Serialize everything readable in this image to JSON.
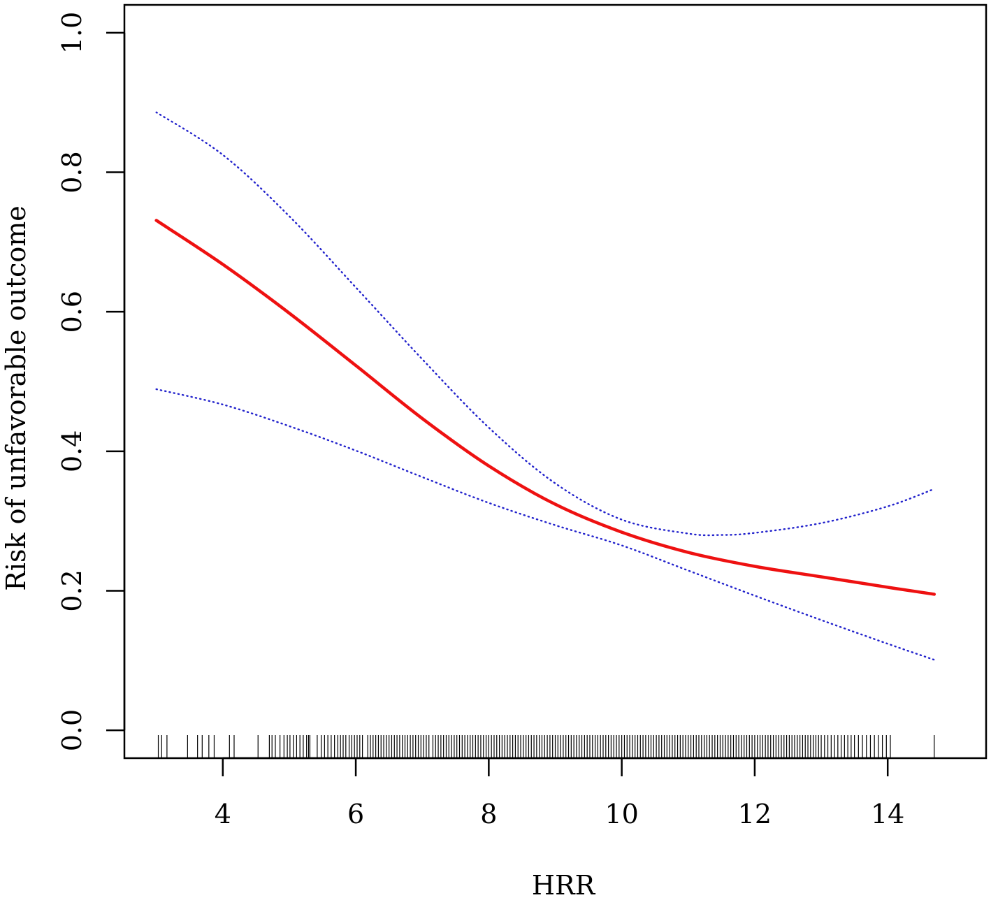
{
  "chart_data": {
    "type": "line",
    "xlabel": "HRR",
    "ylabel": "Risk of unfavorable outcome",
    "xlim": [
      2.52,
      15.48
    ],
    "ylim": [
      -0.04,
      1.04
    ],
    "x_ticks": [
      4,
      6,
      8,
      10,
      12,
      14
    ],
    "x_tick_labels": [
      "4",
      "6",
      "8",
      "10",
      "12",
      "14"
    ],
    "y_ticks": [
      0.0,
      0.2,
      0.4,
      0.6,
      0.8,
      1.0
    ],
    "y_tick_labels": [
      "0.0",
      "0.2",
      "0.4",
      "0.6",
      "0.8",
      "1.0"
    ],
    "grid": false,
    "series": [
      {
        "role": "estimate",
        "color": "#ee1111",
        "style": "solid",
        "x": [
          3.0,
          4.0,
          5.0,
          6.0,
          7.0,
          8.0,
          9.0,
          10.0,
          11.0,
          12.0,
          13.0,
          14.0,
          14.7
        ],
        "y": [
          0.731,
          0.668,
          0.598,
          0.523,
          0.447,
          0.379,
          0.324,
          0.284,
          0.255,
          0.235,
          0.22,
          0.205,
          0.195
        ]
      },
      {
        "role": "upper-95ci",
        "color": "#2222cc",
        "style": "dotted",
        "x": [
          3.0,
          4.0,
          5.0,
          6.0,
          7.0,
          8.0,
          9.0,
          10.0,
          11.0,
          11.5,
          12.0,
          13.0,
          14.0,
          14.7
        ],
        "y": [
          0.886,
          0.825,
          0.737,
          0.635,
          0.532,
          0.434,
          0.354,
          0.302,
          0.282,
          0.28,
          0.283,
          0.297,
          0.321,
          0.346
        ]
      },
      {
        "role": "lower-95ci",
        "color": "#2222cc",
        "style": "dotted",
        "x": [
          3.0,
          4.0,
          5.0,
          6.0,
          7.0,
          8.0,
          9.0,
          10.0,
          11.0,
          12.0,
          13.0,
          14.0,
          14.7
        ],
        "y": [
          0.489,
          0.467,
          0.436,
          0.401,
          0.363,
          0.326,
          0.294,
          0.265,
          0.229,
          0.193,
          0.158,
          0.124,
          0.101
        ]
      }
    ],
    "rug_x": [
      3.03,
      3.08,
      3.16,
      3.47,
      3.62,
      3.69,
      3.79,
      3.87,
      4.1,
      4.17,
      4.53,
      4.7,
      4.74,
      4.79,
      4.86,
      4.92,
      4.97,
      5.01,
      5.06,
      5.11,
      5.16,
      5.21,
      5.26,
      5.29,
      5.31,
      5.42,
      5.48,
      5.53,
      5.58,
      5.63,
      5.68,
      5.73,
      5.77,
      5.81,
      5.85,
      5.9,
      5.94,
      5.98,
      6.02,
      6.06,
      6.1,
      6.18,
      6.22,
      6.26,
      6.3,
      6.34,
      6.38,
      6.42,
      6.46,
      6.5,
      6.54,
      6.58,
      6.62,
      6.66,
      6.7,
      6.74,
      6.78,
      6.82,
      6.86,
      6.9,
      6.94,
      6.98,
      7.02,
      7.06,
      7.1,
      7.16,
      7.2,
      7.24,
      7.28,
      7.32,
      7.36,
      7.4,
      7.44,
      7.48,
      7.52,
      7.56,
      7.6,
      7.64,
      7.68,
      7.72,
      7.76,
      7.8,
      7.84,
      7.88,
      7.92,
      7.96,
      8.0,
      8.04,
      8.08,
      8.12,
      8.16,
      8.2,
      8.24,
      8.28,
      8.32,
      8.36,
      8.4,
      8.44,
      8.48,
      8.52,
      8.56,
      8.6,
      8.64,
      8.68,
      8.72,
      8.76,
      8.8,
      8.84,
      8.88,
      8.92,
      8.96,
      9.0,
      9.04,
      9.08,
      9.12,
      9.16,
      9.2,
      9.24,
      9.28,
      9.32,
      9.36,
      9.4,
      9.44,
      9.48,
      9.52,
      9.56,
      9.6,
      9.64,
      9.68,
      9.72,
      9.76,
      9.8,
      9.84,
      9.88,
      9.92,
      9.96,
      10.0,
      10.04,
      10.08,
      10.12,
      10.16,
      10.2,
      10.24,
      10.28,
      10.32,
      10.36,
      10.4,
      10.44,
      10.48,
      10.52,
      10.56,
      10.6,
      10.64,
      10.68,
      10.72,
      10.76,
      10.8,
      10.84,
      10.88,
      10.92,
      10.96,
      11.0,
      11.04,
      11.08,
      11.12,
      11.16,
      11.2,
      11.24,
      11.28,
      11.32,
      11.36,
      11.4,
      11.44,
      11.48,
      11.52,
      11.56,
      11.6,
      11.64,
      11.68,
      11.72,
      11.76,
      11.8,
      11.84,
      11.88,
      11.92,
      11.96,
      12.0,
      12.04,
      12.08,
      12.12,
      12.16,
      12.2,
      12.24,
      12.28,
      12.32,
      12.36,
      12.4,
      12.44,
      12.48,
      12.52,
      12.56,
      12.6,
      12.64,
      12.68,
      12.72,
      12.76,
      12.8,
      12.84,
      12.88,
      12.92,
      12.96,
      13.0,
      13.05,
      13.1,
      13.15,
      13.2,
      13.25,
      13.3,
      13.35,
      13.4,
      13.45,
      13.5,
      13.56,
      13.62,
      13.68,
      13.74,
      13.8,
      13.86,
      13.92,
      13.98,
      14.04,
      14.7
    ]
  }
}
